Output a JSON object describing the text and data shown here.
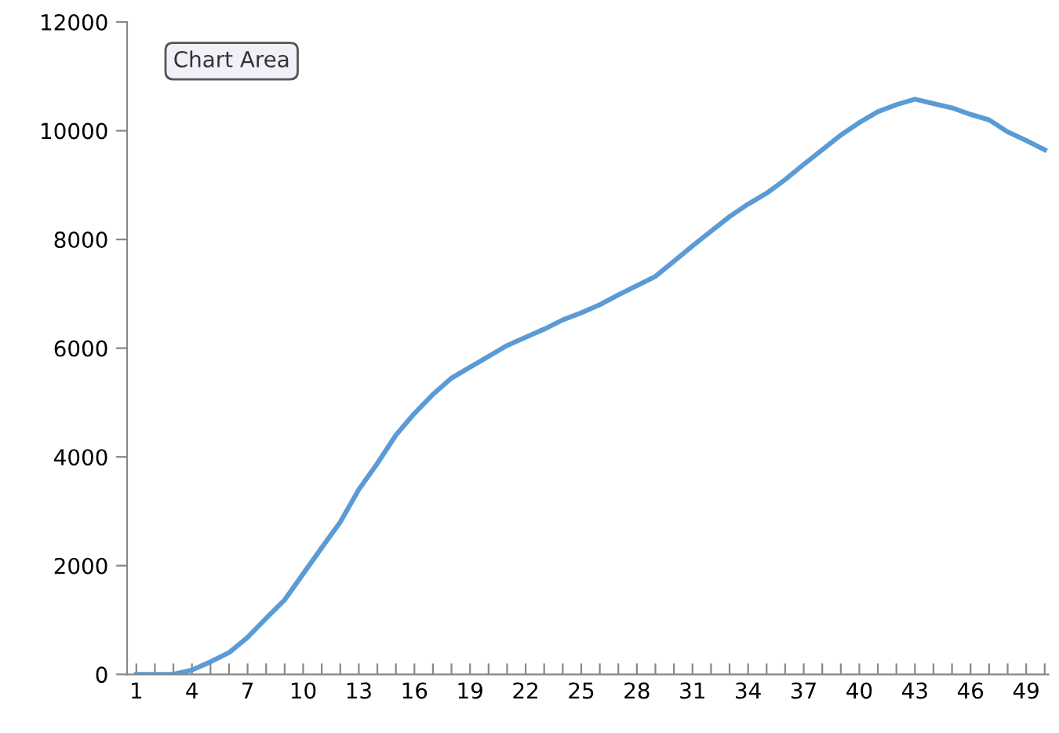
{
  "chart_data": {
    "type": "line",
    "categories": [
      "1",
      null,
      null,
      "4",
      null,
      null,
      "7",
      null,
      null,
      "10",
      null,
      null,
      "13",
      null,
      null,
      "16",
      null,
      null,
      "19",
      null,
      null,
      "22",
      null,
      null,
      "25",
      null,
      null,
      "28",
      null,
      null,
      "31",
      null,
      null,
      "34",
      null,
      null,
      "37",
      null,
      null,
      "40",
      null,
      null,
      "43",
      null,
      null,
      "46",
      null,
      null,
      "49",
      null
    ],
    "series": [
      {
        "color": "#5b9bd5",
        "values": [
          0,
          0,
          0,
          80,
          230,
          400,
          680,
          1030,
          1370,
          1850,
          2330,
          2800,
          3400,
          3880,
          4400,
          4800,
          5150,
          5450,
          5650,
          5850,
          6050,
          6200,
          6350,
          6520,
          6650,
          6800,
          6980,
          7150,
          7320,
          7600,
          7880,
          8150,
          8420,
          8650,
          8850,
          9100,
          9380,
          9650,
          9920,
          10150,
          10350,
          10480,
          10580,
          10500,
          10420,
          10300,
          10200,
          9980,
          9820,
          9650
        ]
      }
    ],
    "ylim": [
      0,
      12000
    ],
    "yticks": [
      0,
      2000,
      4000,
      6000,
      8000,
      10000,
      12000
    ],
    "grid": false,
    "legend": false,
    "marker": "none",
    "line_style": "solid",
    "annotations": [
      "Chart Area"
    ]
  }
}
